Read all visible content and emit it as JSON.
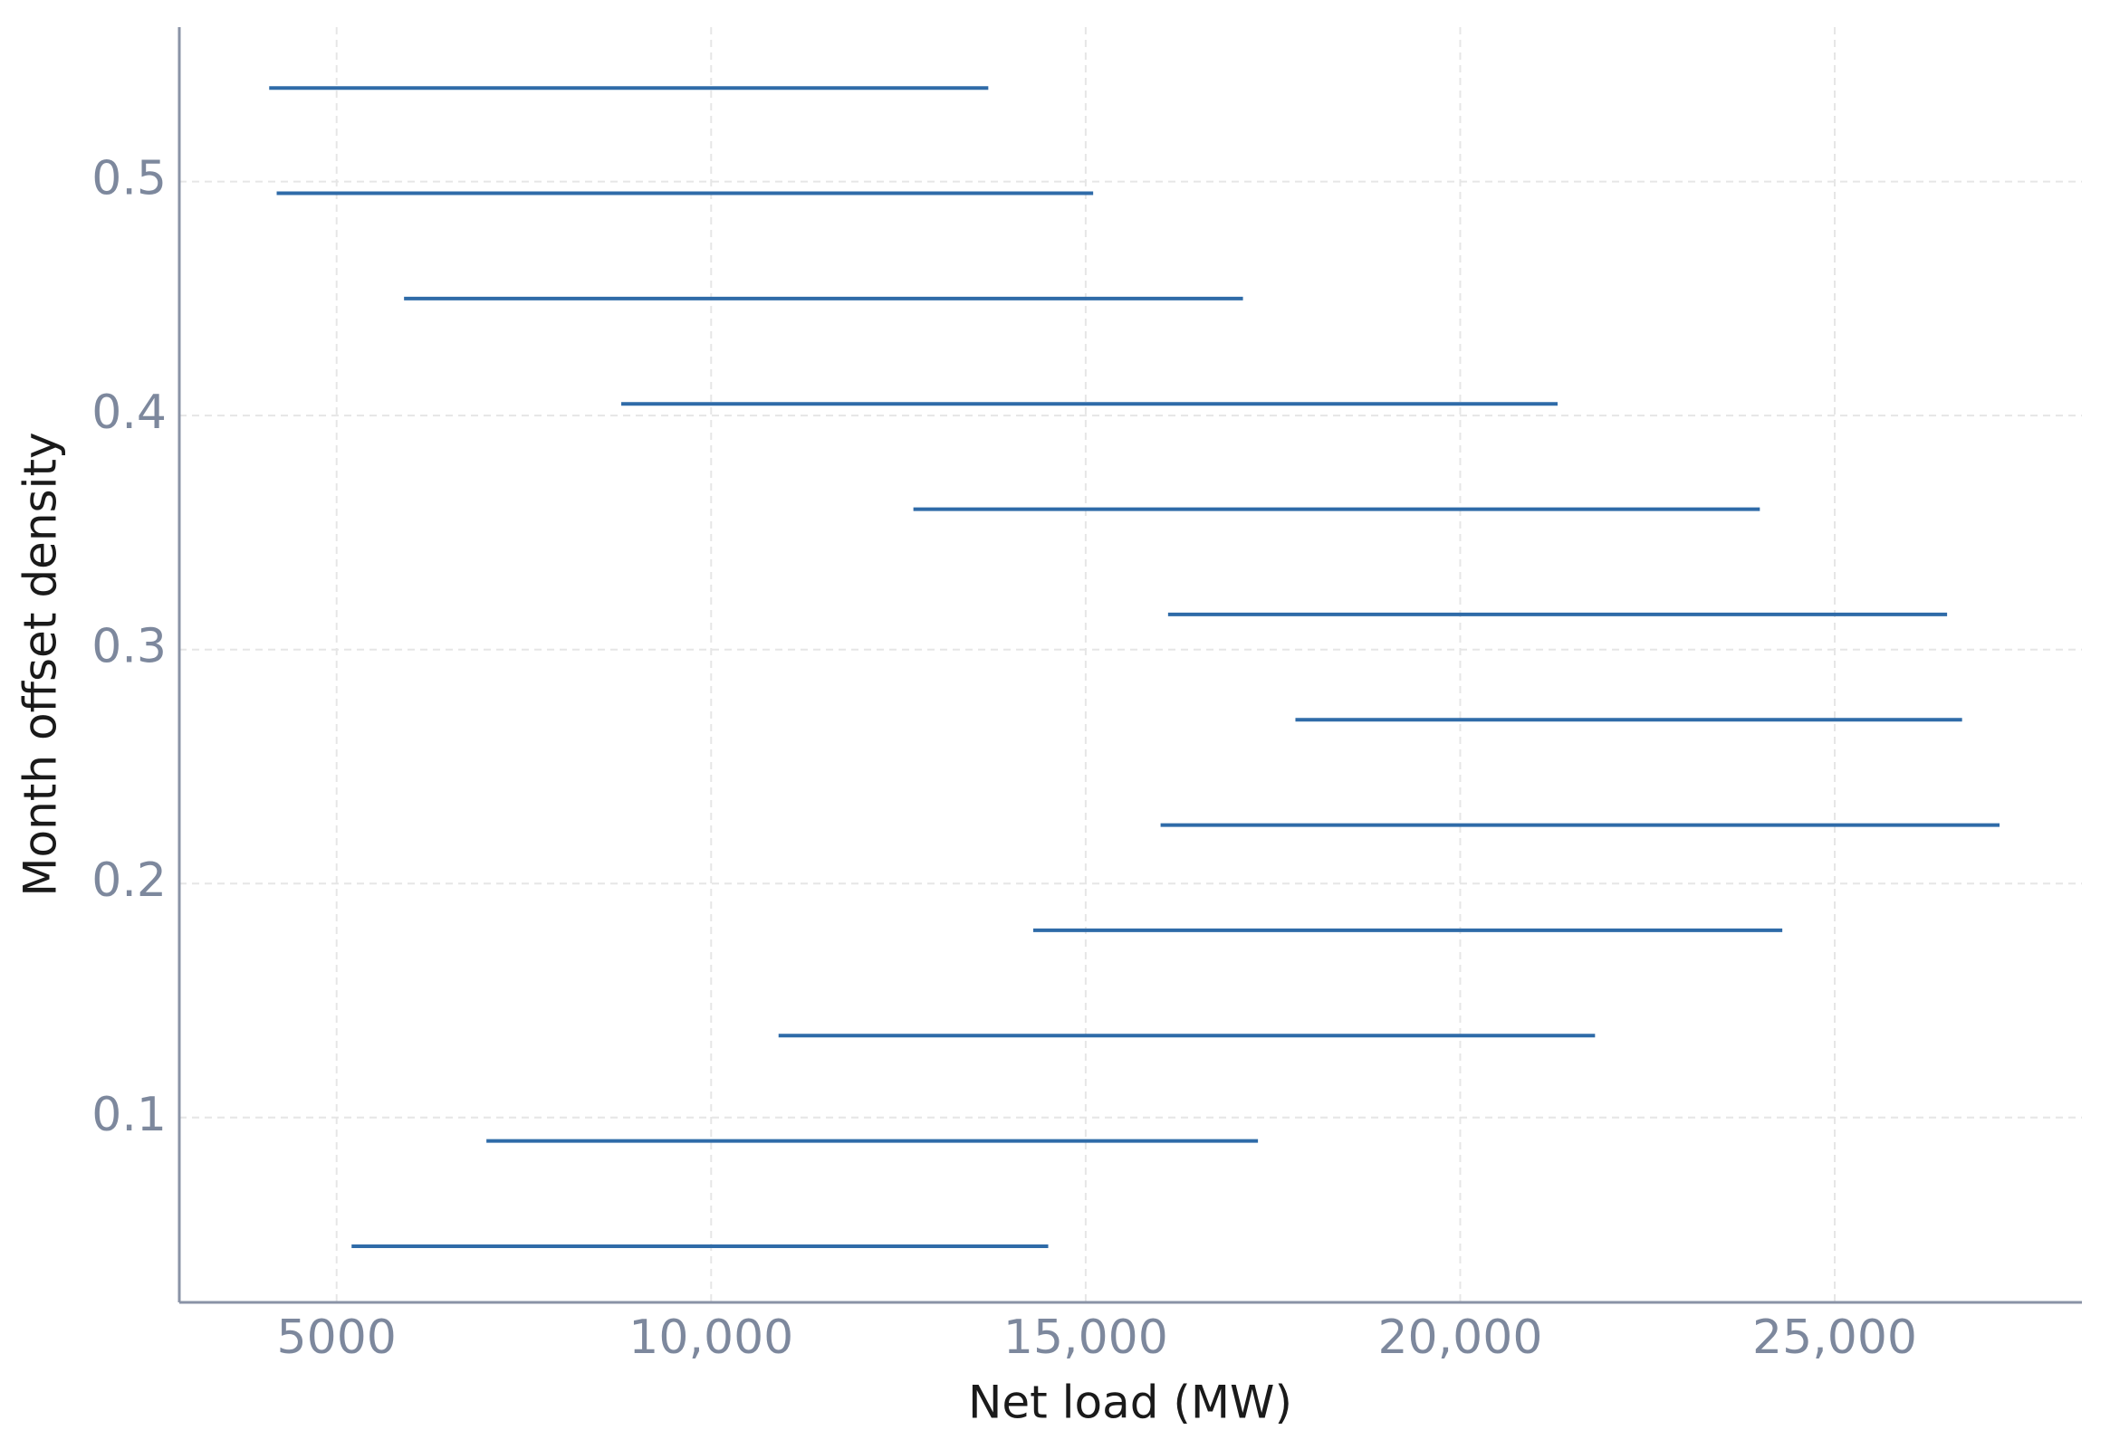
{
  "chart_data": {
    "type": "line",
    "x_label": "Net load (MW)",
    "y_label": "Month offset density",
    "xlim": [
      2900,
      28300
    ],
    "ylim": [
      0.021,
      0.566
    ],
    "xticks": [
      5000,
      {
        "value": 10000,
        "label": "10,000"
      },
      {
        "value": 15000,
        "label": "15,000"
      },
      {
        "value": 20000,
        "label": "20,000"
      },
      {
        "value": 25000,
        "label": "25,000"
      }
    ],
    "yticks": [
      0.1,
      0.2,
      0.3,
      0.4,
      0.5
    ],
    "grid": true,
    "series": [
      {
        "color": "#2f6ba8",
        "x": [
          4100,
          13700
        ],
        "values": [
          0.54,
          0.54
        ]
      },
      {
        "color": "#2f6ba8",
        "x": [
          4200,
          15100
        ],
        "values": [
          0.495,
          0.495
        ]
      },
      {
        "color": "#2f6ba8",
        "x": [
          5900,
          17100
        ],
        "values": [
          0.45,
          0.45
        ]
      },
      {
        "color": "#2f6ba8",
        "x": [
          8800,
          21300
        ],
        "values": [
          0.405,
          0.405
        ]
      },
      {
        "color": "#2f6ba8",
        "x": [
          12700,
          24000
        ],
        "values": [
          0.36,
          0.36
        ]
      },
      {
        "color": "#2f6ba8",
        "x": [
          16100,
          26500
        ],
        "values": [
          0.315,
          0.315
        ]
      },
      {
        "color": "#2f6ba8",
        "x": [
          17800,
          26700
        ],
        "values": [
          0.27,
          0.27
        ]
      },
      {
        "color": "#2f6ba8",
        "x": [
          16000,
          27200
        ],
        "values": [
          0.225,
          0.225
        ]
      },
      {
        "color": "#2f6ba8",
        "x": [
          14300,
          24300
        ],
        "values": [
          0.18,
          0.18
        ]
      },
      {
        "color": "#2f6ba8",
        "x": [
          10900,
          21800
        ],
        "values": [
          0.135,
          0.135
        ]
      },
      {
        "color": "#2f6ba8",
        "x": [
          7000,
          17300
        ],
        "values": [
          0.09,
          0.09
        ]
      },
      {
        "color": "#2f6ba8",
        "x": [
          5200,
          14500
        ],
        "values": [
          0.045,
          0.045
        ]
      }
    ]
  }
}
